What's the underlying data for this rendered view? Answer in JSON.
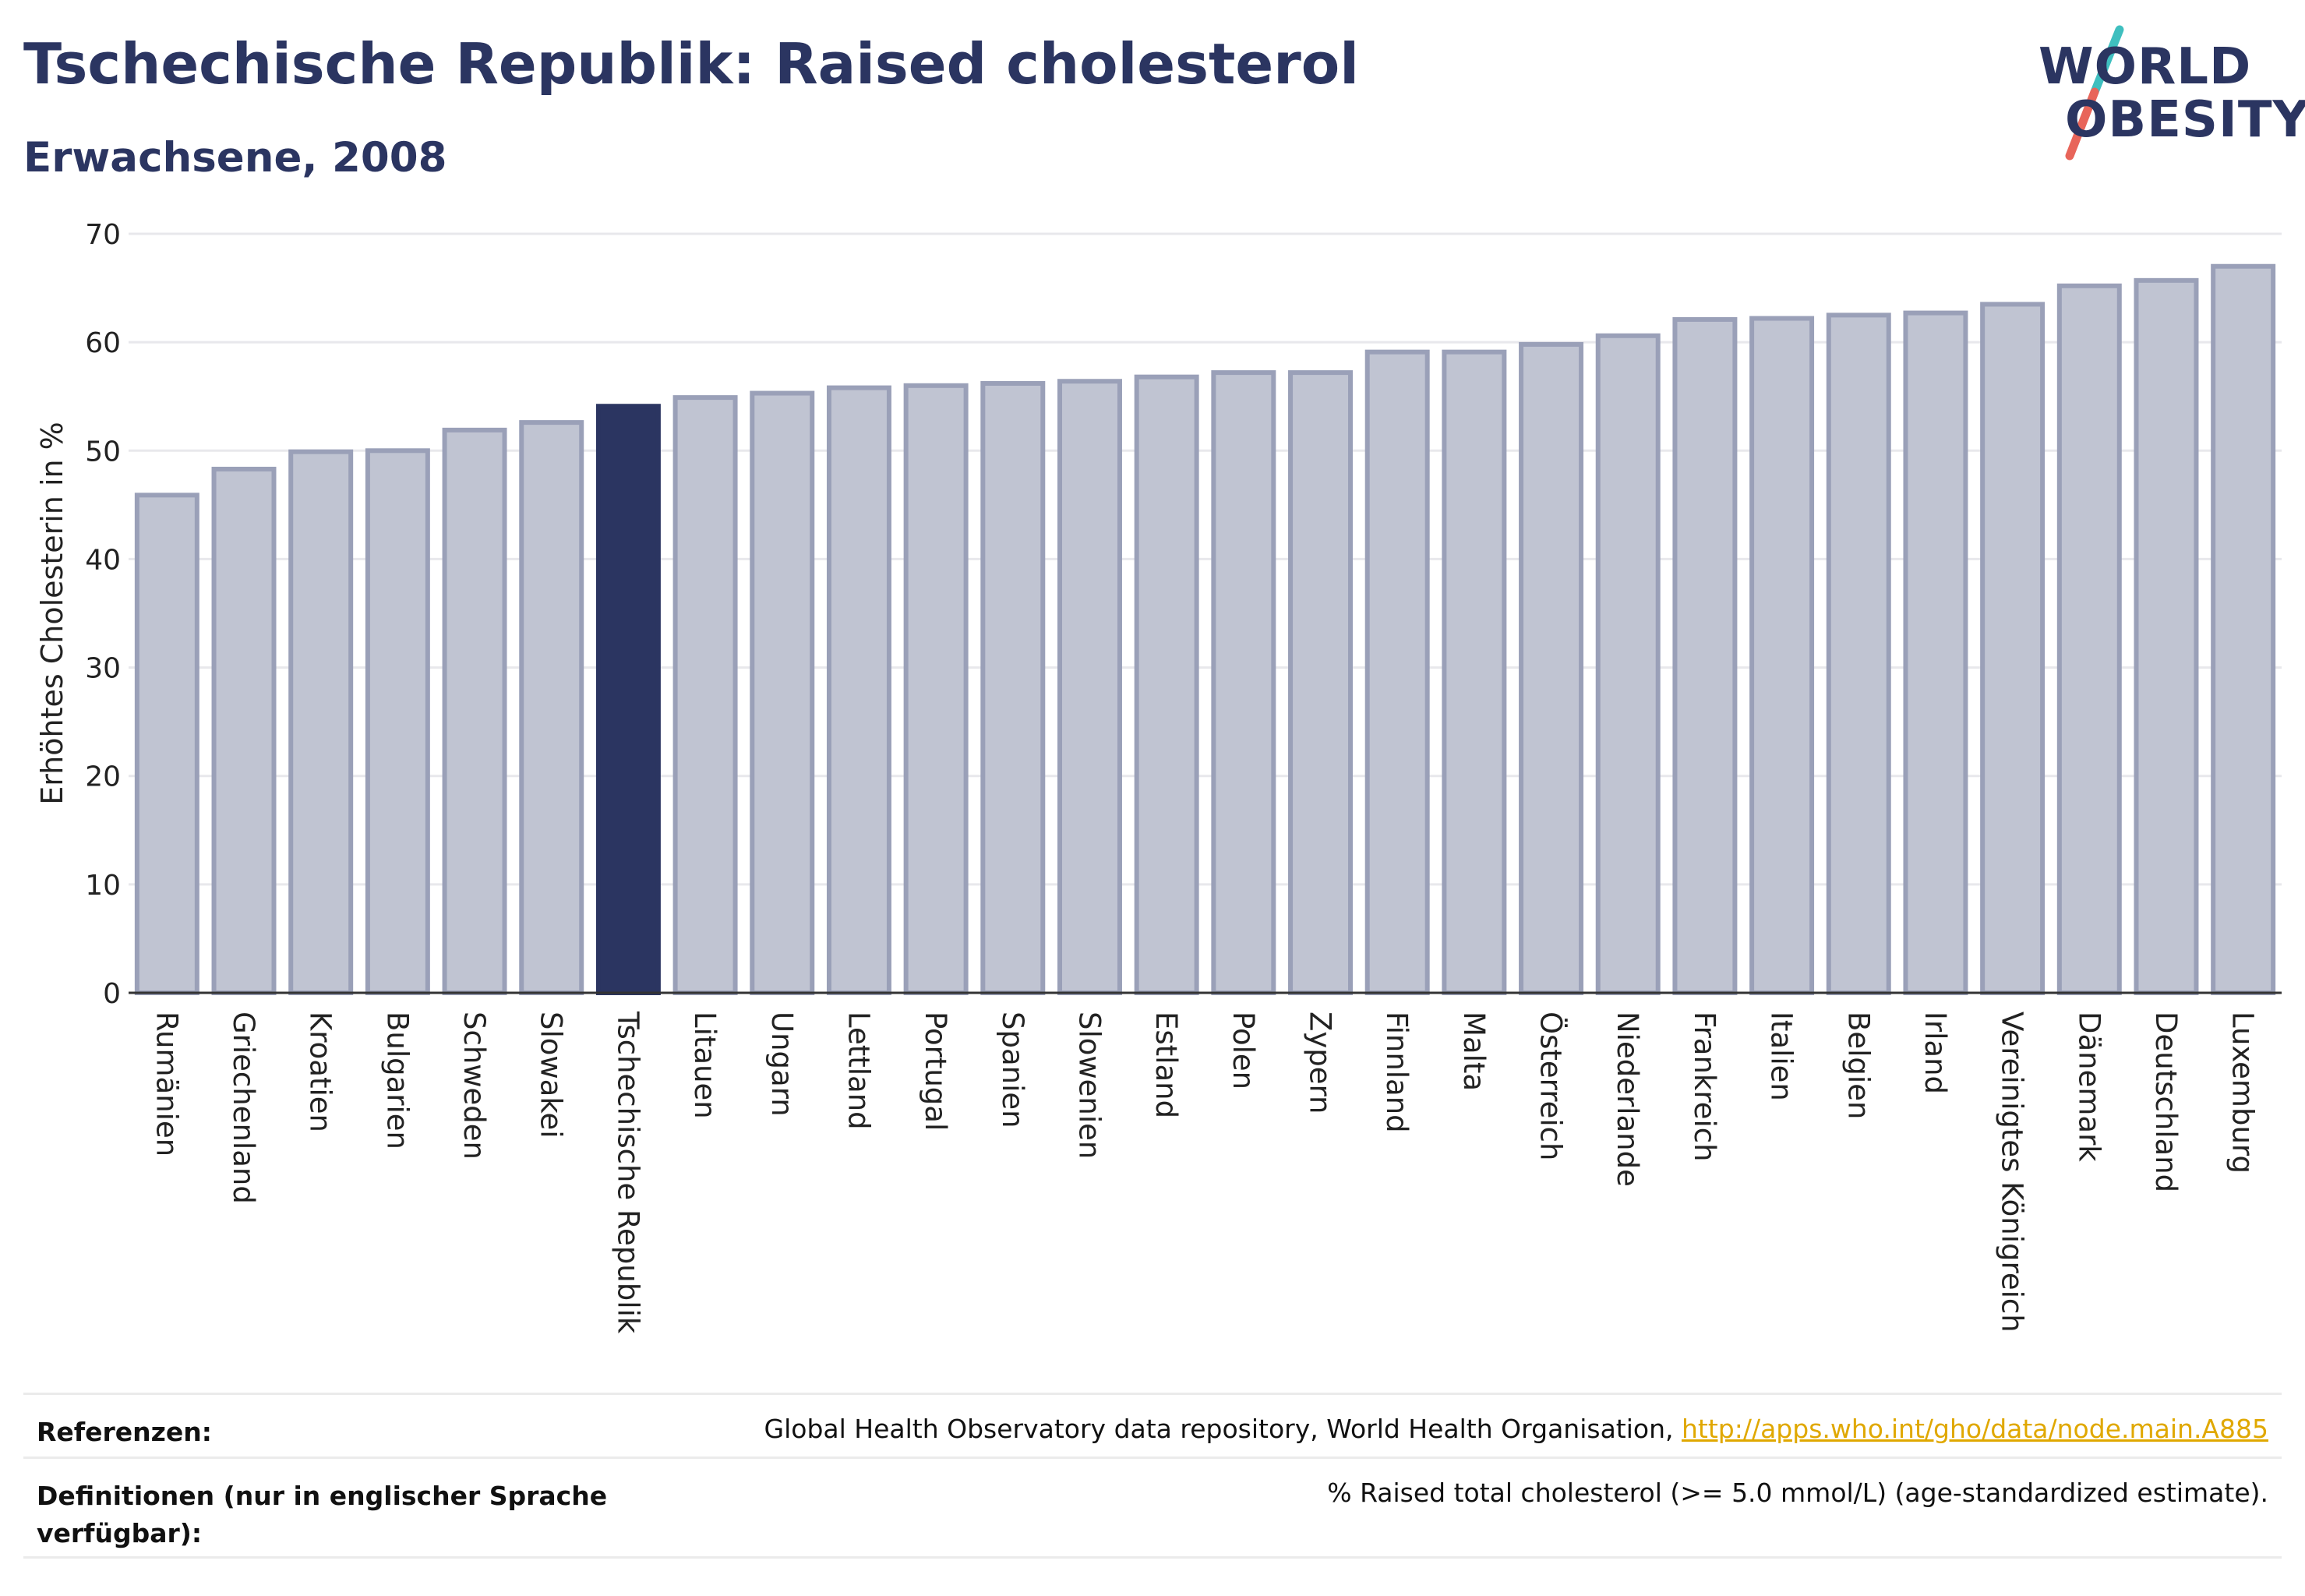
{
  "header": {
    "title": "Tschechische Republik: Raised cholesterol",
    "subtitle": "Erwachsene, 2008"
  },
  "logo": {
    "line1": "WORLD",
    "line2": "OBESITY",
    "colors": {
      "text": "#2b3561",
      "slash_top": "#3fbfbf",
      "slash_bottom": "#e8655a"
    }
  },
  "chart_data": {
    "type": "bar",
    "ylabel": "Erhöhtes Cholesterin in %",
    "ylim": [
      0,
      70
    ],
    "yticks": [
      0,
      10,
      20,
      30,
      40,
      50,
      60,
      70
    ],
    "grid": true,
    "highlight": "Tschechische Republik",
    "colors": {
      "bar": "#c0c4d2",
      "bar_border": "#9aa0b8",
      "highlight": "#2b3561"
    },
    "categories": [
      "Rumänien",
      "Griechenland",
      "Kroatien",
      "Bulgarien",
      "Schweden",
      "Slowakei",
      "Tschechische Republik",
      "Litauen",
      "Ungarn",
      "Lettland",
      "Portugal",
      "Spanien",
      "Slowenien",
      "Estland",
      "Polen",
      "Zypern",
      "Finnland",
      "Malta",
      "Österreich",
      "Niederlande",
      "Frankreich",
      "Italien",
      "Belgien",
      "Irland",
      "Vereinigtes Königreich",
      "Dänemark",
      "Deutschland",
      "Luxemburg"
    ],
    "values": [
      45.9,
      48.3,
      49.9,
      50.0,
      51.9,
      52.6,
      54.1,
      54.9,
      55.3,
      55.8,
      56.0,
      56.2,
      56.4,
      56.8,
      57.2,
      57.2,
      59.1,
      59.1,
      59.8,
      60.6,
      62.1,
      62.2,
      62.5,
      62.7,
      63.5,
      65.2,
      65.7,
      67.0
    ]
  },
  "footer": {
    "references_label": "Referenzen:",
    "references_text": "Global Health Observatory data repository, World Health Organisation, ",
    "references_link": "http://apps.who.int/gho/data/node.main.A885",
    "definitions_label_line1": "Definitionen (nur in englischer Sprache",
    "definitions_label_line2": "verfügbar):",
    "definitions_text": "% Raised total cholesterol (>= 5.0 mmol/L) (age-standardized estimate)."
  }
}
